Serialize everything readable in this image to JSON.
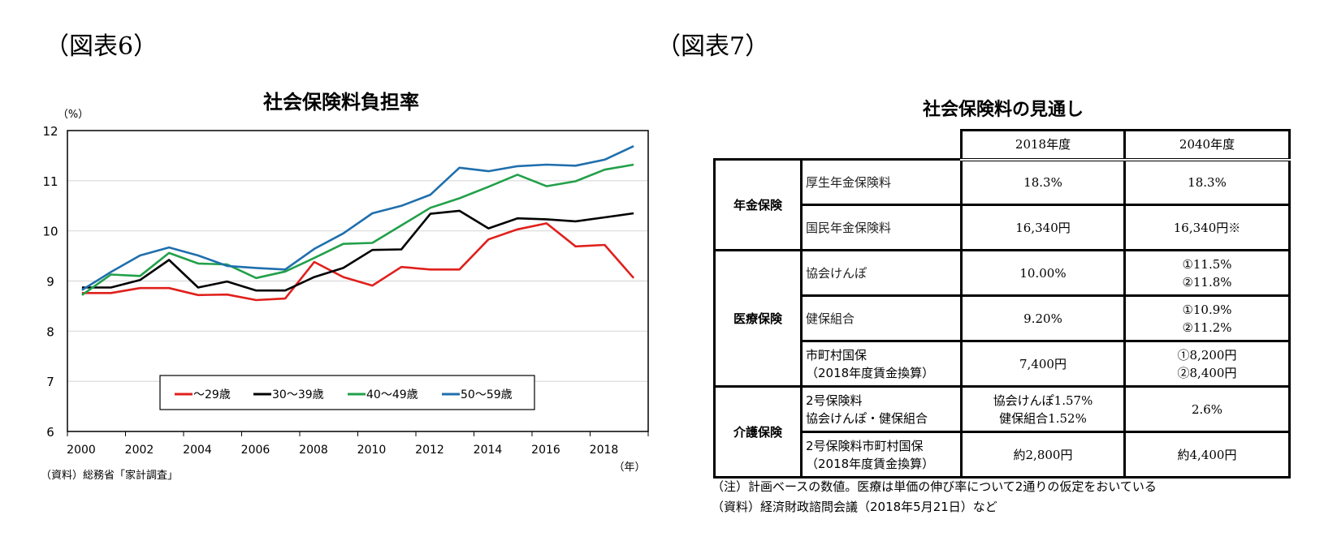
{
  "figure6": {
    "label": "（図表6）",
    "source": "（資料）総務省「家計調査」"
  },
  "figure7": {
    "label": "（図表7）",
    "title": "社会保険料の見通し",
    "columns": [
      "2018年度",
      "2040年度"
    ],
    "groups": [
      {
        "name": "年金保険",
        "rows": [
          {
            "item": [
              "厚生年金保険料"
            ],
            "v2018": [
              "18.3%"
            ],
            "v2040": [
              "18.3%"
            ]
          },
          {
            "item": [
              "国民年金保険料"
            ],
            "v2018": [
              "16,340円"
            ],
            "v2040": [
              "16,340円※"
            ]
          }
        ]
      },
      {
        "name": "医療保険",
        "rows": [
          {
            "item": [
              "協会けんぽ"
            ],
            "v2018": [
              "10.00%"
            ],
            "v2040": [
              "①11.5%",
              "②11.8%"
            ]
          },
          {
            "item": [
              "健保組合"
            ],
            "v2018": [
              "9.20%"
            ],
            "v2040": [
              "①10.9%",
              "②11.2%"
            ]
          },
          {
            "item": [
              "市町村国保",
              "（2018年度賃金換算）"
            ],
            "v2018": [
              "7,400円"
            ],
            "v2040": [
              "①8,200円",
              "②8,400円"
            ]
          }
        ]
      },
      {
        "name": "介護保険",
        "rows": [
          {
            "item": [
              "2号保険料",
              "協会けんぽ・健保組合"
            ],
            "v2018": [
              "協会けんぽ1.57%",
              "健保組合1.52%"
            ],
            "v2040": [
              "2.6%"
            ]
          },
          {
            "item": [
              "2号保険料市町村国保",
              "（2018年度賃金換算）"
            ],
            "v2018": [
              "約2,800円"
            ],
            "v2040": [
              "約4,400円"
            ]
          }
        ]
      }
    ],
    "notes": [
      "（注）計画ベースの数値。医療は単価の伸び率について2通りの仮定をおいている",
      "（資料）経済財政諮問会議（2018年5月21日）など"
    ]
  },
  "chart_data": {
    "type": "line",
    "title": "社会保険料負担率",
    "ylabel": "（%）",
    "xlabel": "（年）",
    "ylim": [
      6,
      12
    ],
    "yticks": [
      6,
      7,
      8,
      9,
      10,
      11,
      12
    ],
    "xtick_labels": [
      "2000",
      "2002",
      "2004",
      "2006",
      "2008",
      "2010",
      "2012",
      "2014",
      "2016",
      "2018"
    ],
    "grid": true,
    "legend_position": "bottom-center-inside",
    "x": [
      2000,
      2001,
      2002,
      2003,
      2004,
      2005,
      2006,
      2007,
      2008,
      2009,
      2010,
      2011,
      2012,
      2013,
      2014,
      2015,
      2016,
      2017,
      2018,
      2019
    ],
    "series": [
      {
        "name": "～29歳",
        "color": "#e0201c",
        "values": [
          8.76,
          8.76,
          8.86,
          8.86,
          8.72,
          8.73,
          8.62,
          8.65,
          9.38,
          9.08,
          8.91,
          9.28,
          9.23,
          9.23,
          9.83,
          10.03,
          10.15,
          9.69,
          9.72,
          9.06
        ]
      },
      {
        "name": "30～39歳",
        "color": "#000000",
        "values": [
          8.87,
          8.87,
          9.02,
          9.42,
          8.87,
          8.99,
          8.81,
          8.81,
          9.08,
          9.26,
          9.62,
          9.63,
          10.34,
          10.4,
          10.05,
          10.25,
          10.23,
          10.19,
          10.27,
          10.35
        ]
      },
      {
        "name": "40～49歳",
        "color": "#22a04a",
        "values": [
          8.72,
          9.13,
          9.1,
          9.56,
          9.35,
          9.33,
          9.06,
          9.19,
          9.46,
          9.74,
          9.76,
          10.11,
          10.46,
          10.65,
          10.88,
          11.12,
          10.89,
          10.99,
          11.22,
          11.32
        ]
      },
      {
        "name": "50～59歳",
        "color": "#1f6fad",
        "values": [
          8.82,
          9.18,
          9.51,
          9.67,
          9.51,
          9.3,
          9.26,
          9.23,
          9.64,
          9.95,
          10.35,
          10.5,
          10.72,
          11.26,
          11.19,
          11.29,
          11.32,
          11.3,
          11.42,
          11.69
        ]
      }
    ]
  }
}
